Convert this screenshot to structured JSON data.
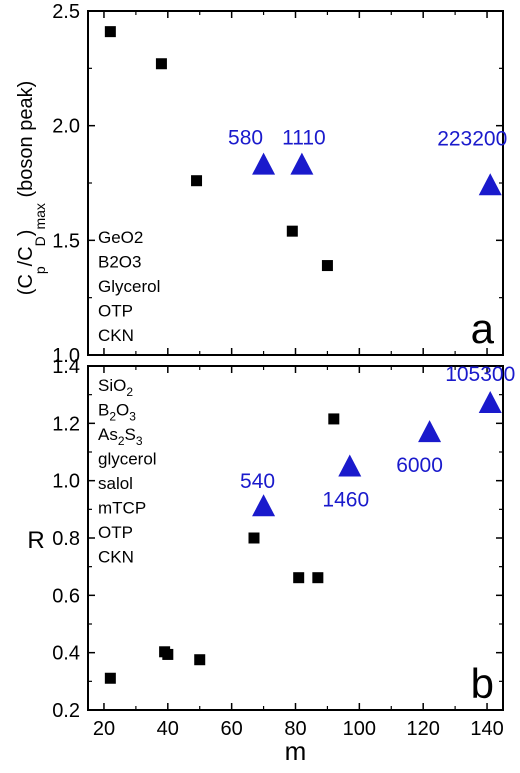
{
  "chart_data": [
    {
      "type": "scatter",
      "panel_label": "a",
      "ylabel": {
        "main": "(C",
        "sub1": "p",
        "mid": "/C",
        "sub2": "D",
        "close": ")",
        "sub3": "max",
        "rest": "  (boson peak)"
      },
      "xlim": [
        15,
        145
      ],
      "ylim": [
        1.0,
        2.5
      ],
      "yticks": [
        "1.0",
        "1.5",
        "2.0",
        "2.5"
      ],
      "legend_entries": [
        "GeO2",
        "B2O3",
        "Glycerol",
        "OTP",
        "CKN"
      ],
      "series": [
        {
          "marker": "square",
          "color": "#000000",
          "points": [
            {
              "x": 22,
              "y": 2.41
            },
            {
              "x": 38,
              "y": 2.27
            },
            {
              "x": 49,
              "y": 1.76
            },
            {
              "x": 79,
              "y": 1.54
            },
            {
              "x": 90,
              "y": 1.39
            }
          ]
        },
        {
          "marker": "triangle",
          "color": "#1a1acc",
          "points": [
            {
              "x": 70,
              "y": 1.83,
              "label": "580"
            },
            {
              "x": 82,
              "y": 1.83,
              "label": "1110"
            },
            {
              "x": 141,
              "y": 1.74,
              "label": "223200"
            }
          ]
        }
      ]
    },
    {
      "type": "scatter",
      "panel_label": "b",
      "ylabel": "R",
      "xlabel": "m",
      "xlim": [
        15,
        145
      ],
      "ylim": [
        0.2,
        1.5
      ],
      "yticks": [
        "0.2",
        "0.4",
        "0.6",
        "0.8",
        "1.0",
        "1.2",
        "1.4"
      ],
      "xticks": [
        "20",
        "40",
        "60",
        "80",
        "100",
        "120",
        "140"
      ],
      "legend_entries": [
        {
          "parts": [
            {
              "t": "SiO"
            },
            {
              "t": "2",
              "sub": true
            }
          ]
        },
        {
          "parts": [
            {
              "t": "B"
            },
            {
              "t": "2",
              "sub": true
            },
            {
              "t": "O"
            },
            {
              "t": "3",
              "sub": true
            }
          ]
        },
        {
          "parts": [
            {
              "t": "As"
            },
            {
              "t": "2",
              "sub": true
            },
            {
              "t": "S"
            },
            {
              "t": "3",
              "sub": true
            }
          ]
        },
        {
          "parts": [
            {
              "t": "glycerol"
            }
          ]
        },
        {
          "parts": [
            {
              "t": "salol"
            }
          ]
        },
        {
          "parts": [
            {
              "t": "mTCP"
            }
          ]
        },
        {
          "parts": [
            {
              "t": "OTP"
            }
          ]
        },
        {
          "parts": [
            {
              "t": "CKN"
            }
          ]
        }
      ],
      "series": [
        {
          "marker": "square",
          "color": "#000000",
          "points": [
            {
              "x": 22,
              "y": 0.32
            },
            {
              "x": 39,
              "y": 0.42
            },
            {
              "x": 40,
              "y": 0.41
            },
            {
              "x": 50,
              "y": 0.39
            },
            {
              "x": 67,
              "y": 0.85
            },
            {
              "x": 81,
              "y": 0.7
            },
            {
              "x": 87,
              "y": 0.7
            },
            {
              "x": 92,
              "y": 1.3
            }
          ]
        },
        {
          "marker": "triangle",
          "color": "#1a1acc",
          "points": [
            {
              "x": 70,
              "y": 0.97,
              "label": "540"
            },
            {
              "x": 97,
              "y": 1.12,
              "label": "1460"
            },
            {
              "x": 122,
              "y": 1.25,
              "label": "6000"
            },
            {
              "x": 141,
              "y": 1.36,
              "label": "105300"
            }
          ]
        }
      ]
    }
  ]
}
